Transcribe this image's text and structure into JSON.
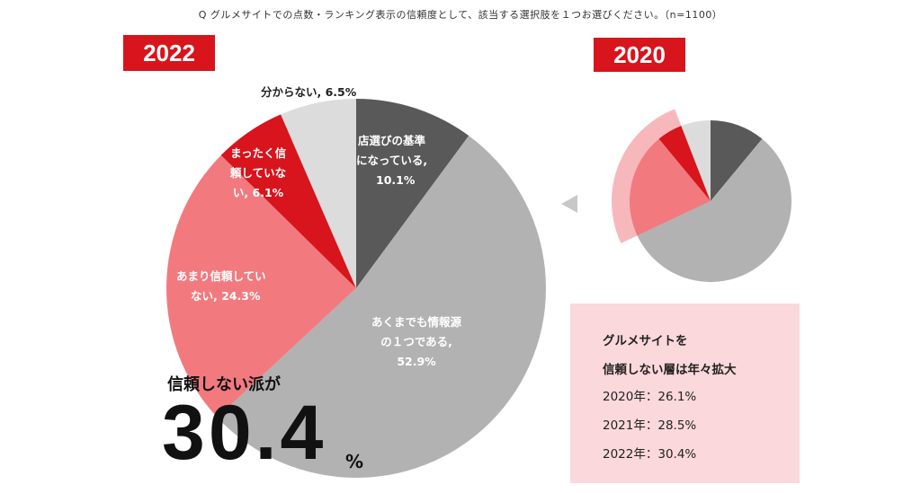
{
  "question": "Q グルメサイトでの点数・ランキング表示の信頼度として、該当する選択肢を１つお選びください。（n=1100）",
  "badges": {
    "y2022": "2022",
    "y2020": "2020"
  },
  "colors": {
    "red": "#d8141c",
    "pink": "#f27a7f",
    "light_pink": "#f7b8bc",
    "dark": "#595959",
    "gray": "#b2b2b2",
    "light_gray": "#dcdcdc",
    "callout_bg": "#fbd8db"
  },
  "chart_data": [
    {
      "type": "pie",
      "year": "2022",
      "slices": [
        {
          "id": "basis",
          "label_lines": [
            "店選びの基準",
            "になっている,",
            "10.1%"
          ],
          "value": 10.1,
          "color": "#595959"
        },
        {
          "id": "one_source",
          "label_lines": [
            "あくまでも情報源",
            "の１つである,",
            "52.9%"
          ],
          "value": 52.9,
          "color": "#b2b2b2"
        },
        {
          "id": "not_much",
          "label_lines": [
            "あまり信頼してい",
            "ない, 24.3%"
          ],
          "value": 24.3,
          "color": "#f27a7f"
        },
        {
          "id": "not_at_all",
          "label_lines": [
            "まったく信",
            "頼していな",
            "い, 6.1%"
          ],
          "value": 6.1,
          "color": "#d8141c"
        },
        {
          "id": "unknown",
          "label_lines": [
            "分からない, 6.5%"
          ],
          "value": 6.5,
          "color": "#dcdcdc"
        }
      ]
    },
    {
      "type": "pie",
      "year": "2020",
      "slices": [
        {
          "id": "basis",
          "value": 11,
          "color": "#595959"
        },
        {
          "id": "one_source",
          "value": 57,
          "color": "#b2b2b2"
        },
        {
          "id": "not_much",
          "value": 21,
          "color": "#f27a7f"
        },
        {
          "id": "not_at_all",
          "value": 5.1,
          "color": "#d8141c"
        },
        {
          "id": "unknown",
          "value": 5.9,
          "color": "#dcdcdc"
        }
      ],
      "distrust_total": 26.1
    }
  ],
  "headline": {
    "label": "信頼しない派が",
    "value": "30.4",
    "unit": "%"
  },
  "callout": {
    "title_lines": [
      "グルメサイトを",
      "信頼しない層は年々拡大"
    ],
    "rows": [
      "2020年：26.1%",
      "2021年：28.5%",
      "2022年：30.4%"
    ]
  }
}
